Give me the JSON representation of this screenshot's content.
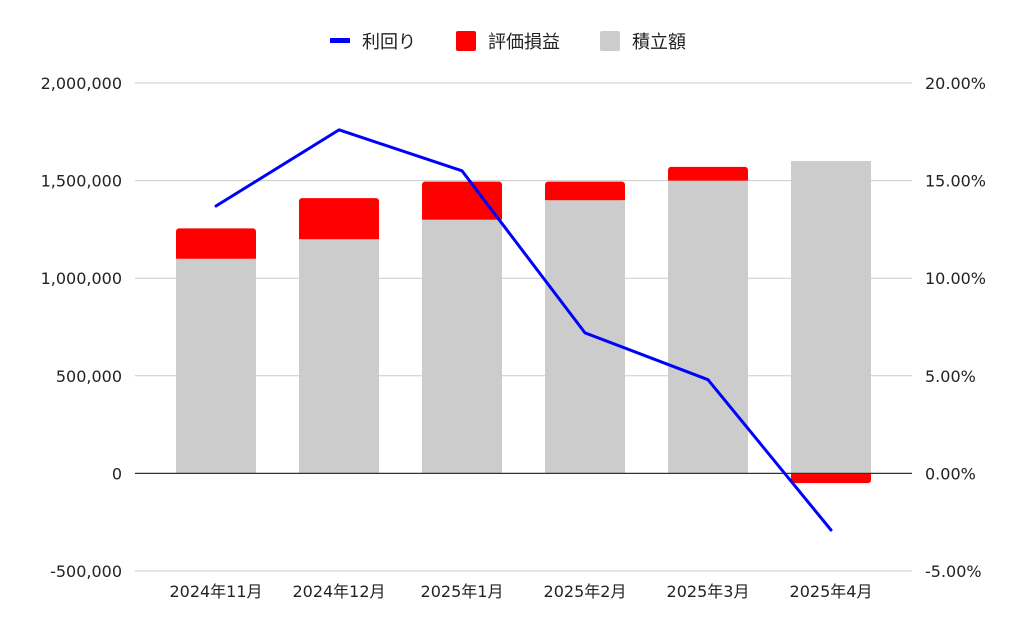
{
  "chart_data": {
    "type": "bar",
    "stacked": true,
    "categories": [
      "2024年11月",
      "2024年12月",
      "2025年1月",
      "2025年2月",
      "2025年3月",
      "2025年4月"
    ],
    "series": [
      {
        "name": "積立額",
        "kind": "bar",
        "axis": "left",
        "color": "#cccccc",
        "values": [
          1100000,
          1200000,
          1300000,
          1400000,
          1500000,
          1600000
        ]
      },
      {
        "name": "評価損益",
        "kind": "bar",
        "axis": "left",
        "color": "#ff0000",
        "values": [
          155000,
          210000,
          195000,
          95000,
          70000,
          -50000
        ]
      },
      {
        "name": "利回り",
        "kind": "line",
        "axis": "right",
        "color": "#0000ff",
        "values": [
          13.7,
          17.6,
          15.5,
          7.2,
          4.8,
          -2.9
        ]
      }
    ],
    "legend_order": [
      "利回り",
      "評価損益",
      "積立額"
    ],
    "legend_position": "top-center",
    "y_left": {
      "lim": [
        -500000,
        2000000
      ],
      "ticks": [
        "2,000,000",
        "1,500,000",
        "1,000,000",
        "500,000",
        "0",
        "-500,000"
      ],
      "tick_values": [
        2000000,
        1500000,
        1000000,
        500000,
        0,
        -500000
      ]
    },
    "y_right": {
      "lim": [
        -5,
        20
      ],
      "ticks": [
        "20.00%",
        "15.00%",
        "10.00%",
        "5.00%",
        "0.00%",
        "-5.00%"
      ],
      "tick_values": [
        20,
        15,
        10,
        5,
        0,
        -5
      ]
    },
    "grid": true,
    "colors": {
      "grid": "#cccccc",
      "zero_line": "#333333",
      "text": "#222222"
    }
  }
}
